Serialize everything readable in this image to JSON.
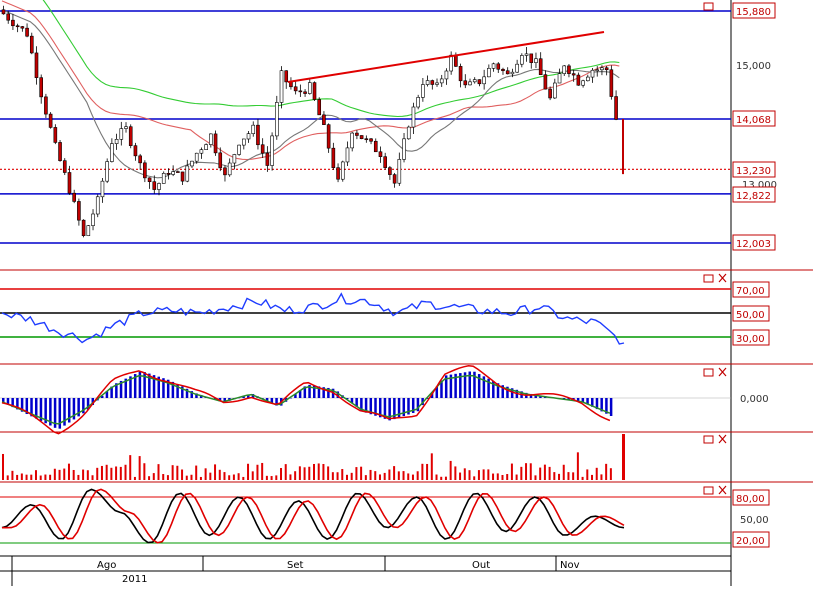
{
  "axis": {
    "month_labels": [
      "Ago",
      "Set",
      "Out",
      "Nov"
    ],
    "year_label": "2011"
  },
  "price_panel": {
    "level_labels": [
      "15,880",
      "15,000",
      "14,068",
      "13,230",
      "13,000",
      "12,822",
      "12,003"
    ],
    "y_levels": [
      15880,
      15000,
      14068,
      13230,
      13000,
      12822,
      12003
    ]
  },
  "rsi_panel": {
    "level_labels": [
      "70,00",
      "50,00",
      "30,00"
    ]
  },
  "macd_panel": {
    "level_labels": [
      "0,000"
    ]
  },
  "stoch_panel": {
    "level_labels": [
      "80,00",
      "50,00",
      "20,00"
    ]
  },
  "colors": {
    "level_line": "#0000cc",
    "trend_line": "#e00000",
    "ma_green": "#33cc33",
    "ma_red": "#e06060",
    "ma_gray": "#777777",
    "rsi_line": "#1e3cff",
    "panel_border": "#c00000",
    "label_text": "#c00000",
    "volume_bar": "#e00000"
  },
  "chart_data": [
    {
      "type": "candlestick",
      "panel": "price",
      "title": "",
      "y_scale_labels": [
        15880,
        15000,
        14068,
        13230,
        13000,
        12822,
        12003
      ],
      "horizontal_lines": [
        15880,
        14068,
        12822,
        12003
      ],
      "dotted_line": 13230,
      "x_months": [
        "Ago",
        "Set",
        "Out",
        "Nov"
      ],
      "year": "2011",
      "approx_close_path": [
        {
          "t": 0,
          "v": 15900
        },
        {
          "t": 3,
          "v": 15700
        },
        {
          "t": 6,
          "v": 15500
        },
        {
          "t": 9,
          "v": 14500
        },
        {
          "t": 12,
          "v": 13600
        },
        {
          "t": 15,
          "v": 12900
        },
        {
          "t": 18,
          "v": 12100
        },
        {
          "t": 21,
          "v": 12700
        },
        {
          "t": 24,
          "v": 13700
        },
        {
          "t": 27,
          "v": 13900
        },
        {
          "t": 30,
          "v": 13300
        },
        {
          "t": 33,
          "v": 12900
        },
        {
          "t": 36,
          "v": 13200
        },
        {
          "t": 39,
          "v": 13100
        },
        {
          "t": 42,
          "v": 13500
        },
        {
          "t": 45,
          "v": 13800
        },
        {
          "t": 48,
          "v": 13100
        },
        {
          "t": 51,
          "v": 13700
        },
        {
          "t": 54,
          "v": 13900
        },
        {
          "t": 57,
          "v": 13300
        },
        {
          "t": 60,
          "v": 14800
        },
        {
          "t": 63,
          "v": 14500
        },
        {
          "t": 66,
          "v": 14600
        },
        {
          "t": 69,
          "v": 13900
        },
        {
          "t": 72,
          "v": 13000
        },
        {
          "t": 75,
          "v": 13900
        },
        {
          "t": 78,
          "v": 13700
        },
        {
          "t": 81,
          "v": 13500
        },
        {
          "t": 84,
          "v": 13000
        },
        {
          "t": 87,
          "v": 14000
        },
        {
          "t": 90,
          "v": 14700
        },
        {
          "t": 93,
          "v": 14600
        },
        {
          "t": 96,
          "v": 15100
        },
        {
          "t": 99,
          "v": 14600
        },
        {
          "t": 102,
          "v": 14700
        },
        {
          "t": 105,
          "v": 15000
        },
        {
          "t": 108,
          "v": 14800
        },
        {
          "t": 111,
          "v": 15200
        },
        {
          "t": 114,
          "v": 15000
        },
        {
          "t": 117,
          "v": 14400
        },
        {
          "t": 120,
          "v": 15000
        },
        {
          "t": 123,
          "v": 14700
        },
        {
          "t": 126,
          "v": 14900
        },
        {
          "t": 129,
          "v": 14900
        },
        {
          "t": 131,
          "v": 14068
        },
        {
          "t": 132,
          "v": 13230
        }
      ]
    },
    {
      "type": "line",
      "panel": "rsi",
      "levels": [
        70,
        50,
        30
      ],
      "approx_values": [
        50,
        45,
        35,
        28,
        40,
        50,
        52,
        50,
        55,
        60,
        52,
        55,
        62,
        60,
        50,
        58,
        55,
        52,
        50,
        55,
        45,
        42,
        25
      ]
    },
    {
      "type": "bar",
      "panel": "macd",
      "zero_level": 0,
      "approx_values": [
        -0.1,
        -0.4,
        -0.7,
        -0.3,
        0.3,
        0.6,
        0.4,
        0.1,
        -0.1,
        0.1,
        -0.2,
        0.3,
        0.2,
        -0.3,
        -0.5,
        -0.3,
        0.5,
        0.6,
        0.3,
        0.1,
        0.0,
        -0.1,
        -0.4
      ]
    },
    {
      "type": "bar",
      "panel": "volume",
      "approx_values": [
        3,
        2,
        4,
        3,
        2,
        4,
        5,
        3,
        6,
        4,
        3,
        4,
        5,
        3,
        4,
        5,
        4,
        3,
        6,
        5,
        4,
        3,
        10
      ]
    },
    {
      "type": "line",
      "panel": "stochastic",
      "levels": [
        80,
        50,
        20
      ],
      "approx_values": [
        40,
        70,
        25,
        90,
        60,
        20,
        85,
        30,
        80,
        25,
        75,
        25,
        85,
        40,
        80,
        25,
        85,
        35,
        80,
        30,
        55,
        40
      ]
    }
  ]
}
